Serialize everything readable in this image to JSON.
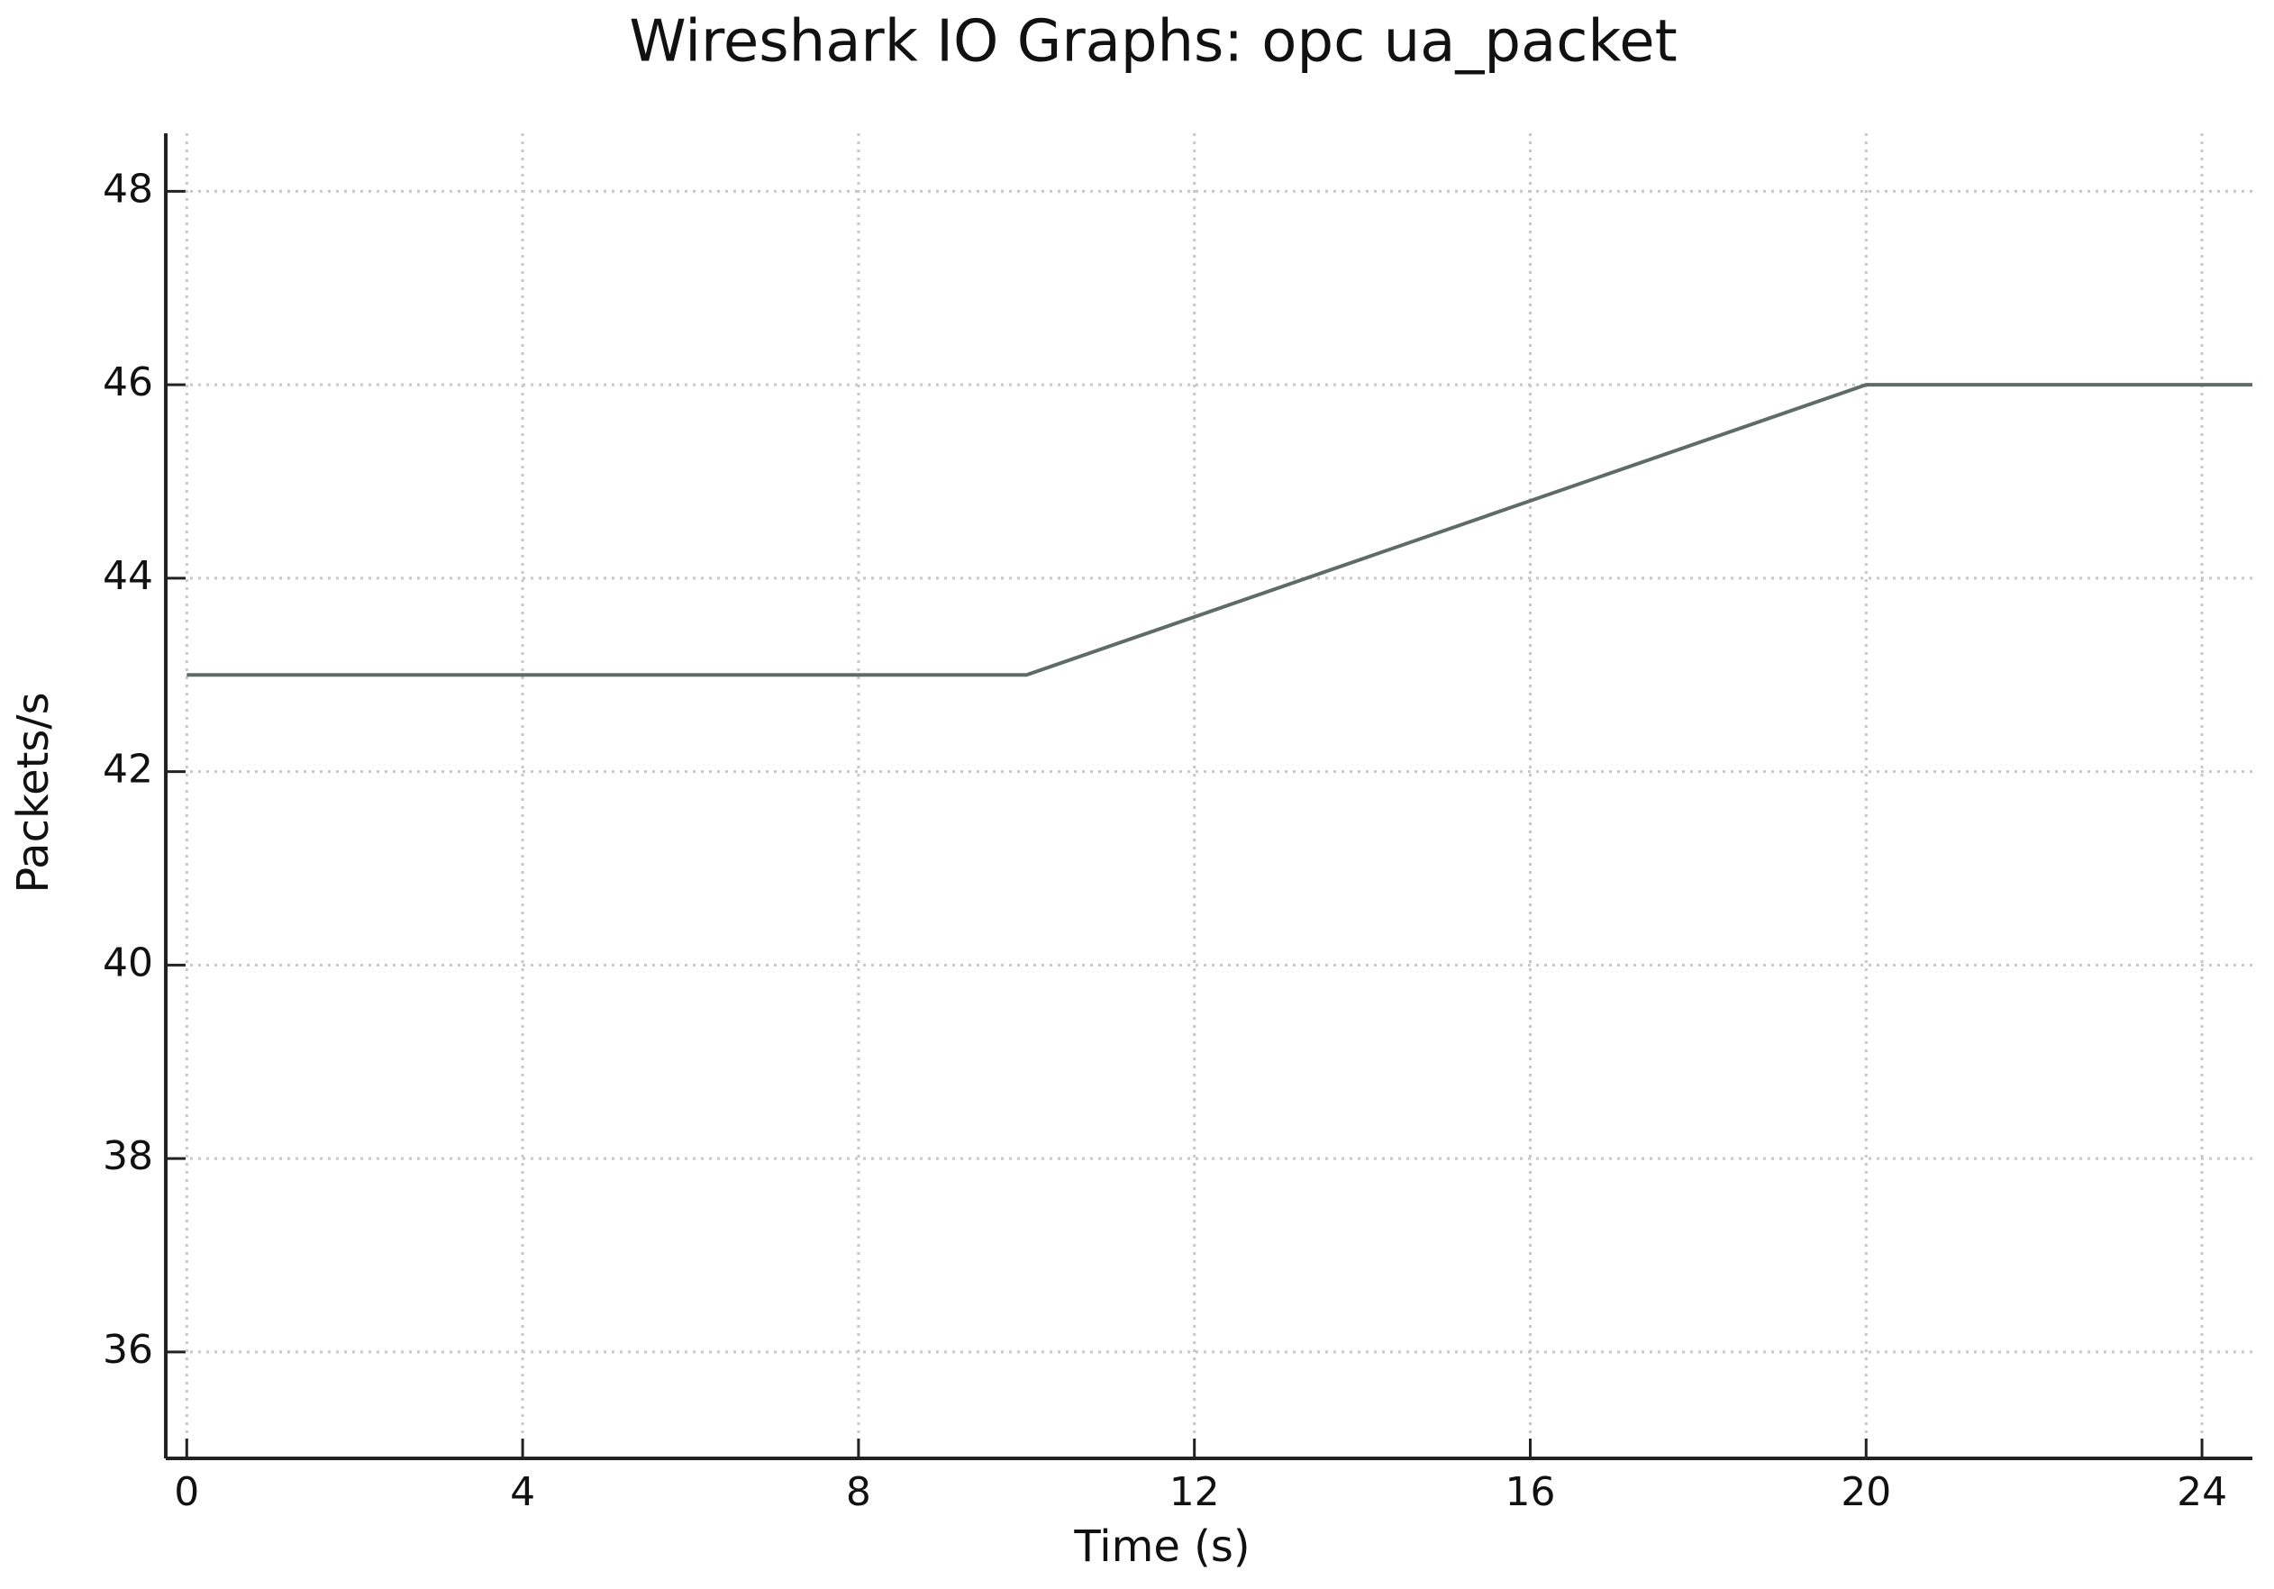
{
  "chart_data": {
    "type": "line",
    "title": "Wireshark IO Graphs: opc ua_packet",
    "x_label": "Time (s)",
    "y_label": "Packets/s",
    "x": [
      0,
      10,
      20,
      24.6
    ],
    "series": [
      {
        "name": "opc ua_packet",
        "color": "#5f6b66",
        "values": [
          43,
          43,
          46,
          46
        ]
      }
    ],
    "xlim": [
      -0.25,
      24.6
    ],
    "ylim": [
      34.9,
      48.6
    ],
    "xticks": [
      0,
      4,
      8,
      12,
      16,
      20,
      24
    ],
    "yticks": [
      36,
      38,
      40,
      42,
      44,
      46,
      48
    ],
    "grid": true
  }
}
